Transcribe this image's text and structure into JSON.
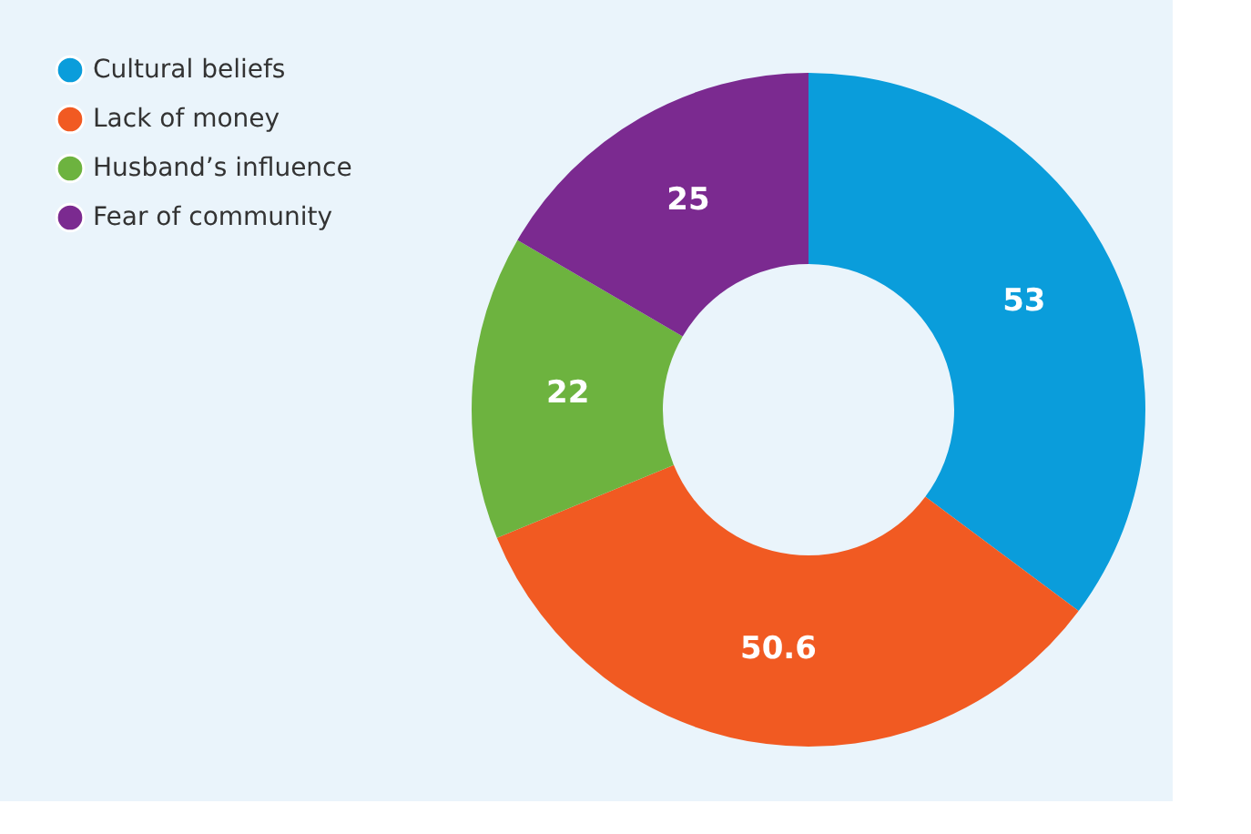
{
  "chart_data": {
    "type": "donut",
    "categories": [
      "Cultural beliefs",
      "Lack of money",
      "Husband’s influence",
      "Fear of community"
    ],
    "values": [
      53,
      50.6,
      22,
      25
    ],
    "colors": [
      "#0a9ddb",
      "#f15a22",
      "#6db33f",
      "#7b2a90"
    ],
    "data_labels": true,
    "legend": "top left"
  }
}
